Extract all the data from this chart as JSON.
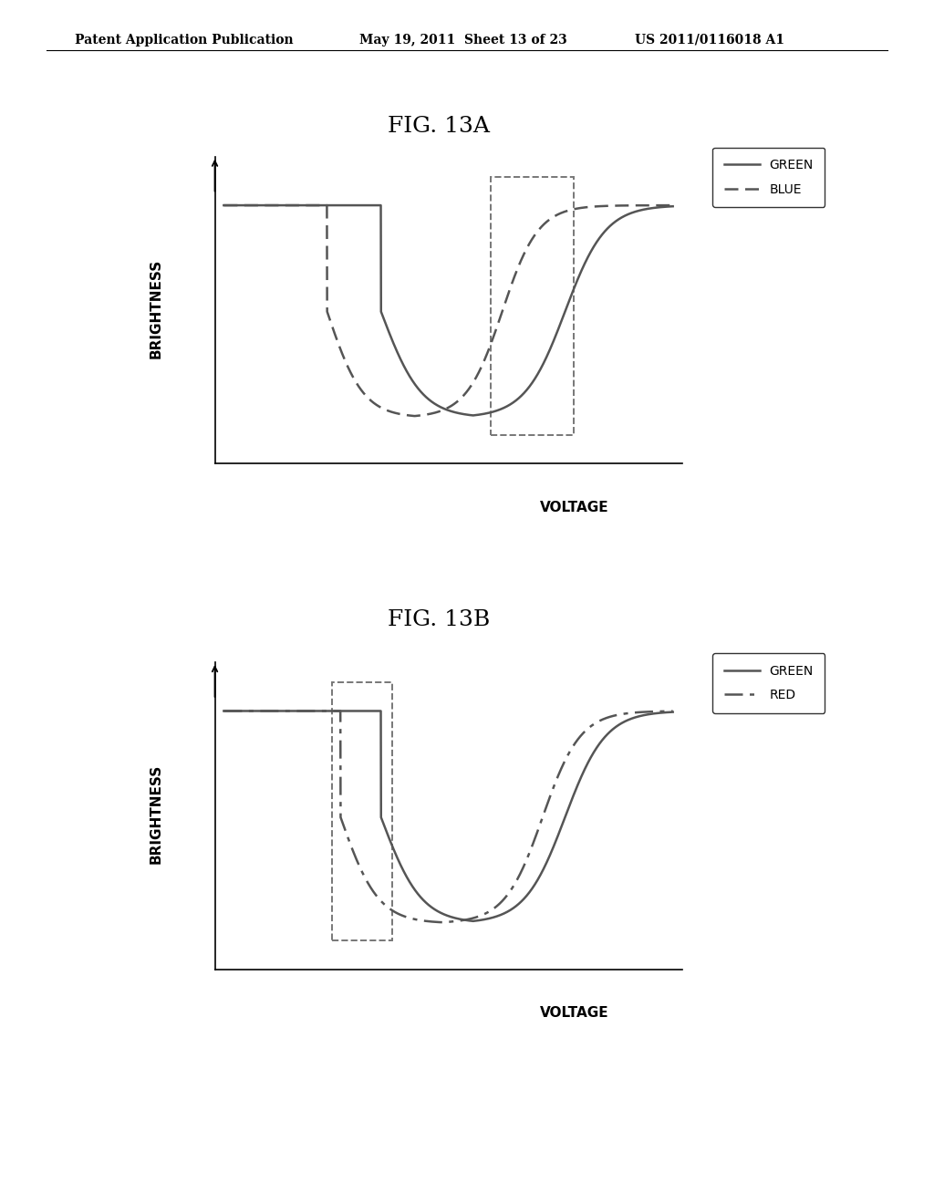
{
  "fig13a_title": "FIG. 13A",
  "fig13b_title": "FIG. 13B",
  "header_left": "Patent Application Publication",
  "header_mid": "May 19, 2011  Sheet 13 of 23",
  "header_right": "US 2011/0116018 A1",
  "ylabel": "BRIGHTNESS",
  "xlabel": "VOLTAGE",
  "fig13a_legend": [
    "GREEN",
    "BLUE"
  ],
  "fig13b_legend": [
    "GREEN",
    "RED"
  ],
  "background_color": "#ffffff",
  "line_color": "#404040",
  "title_fontsize": 18,
  "label_fontsize": 11,
  "header_fontsize": 10
}
